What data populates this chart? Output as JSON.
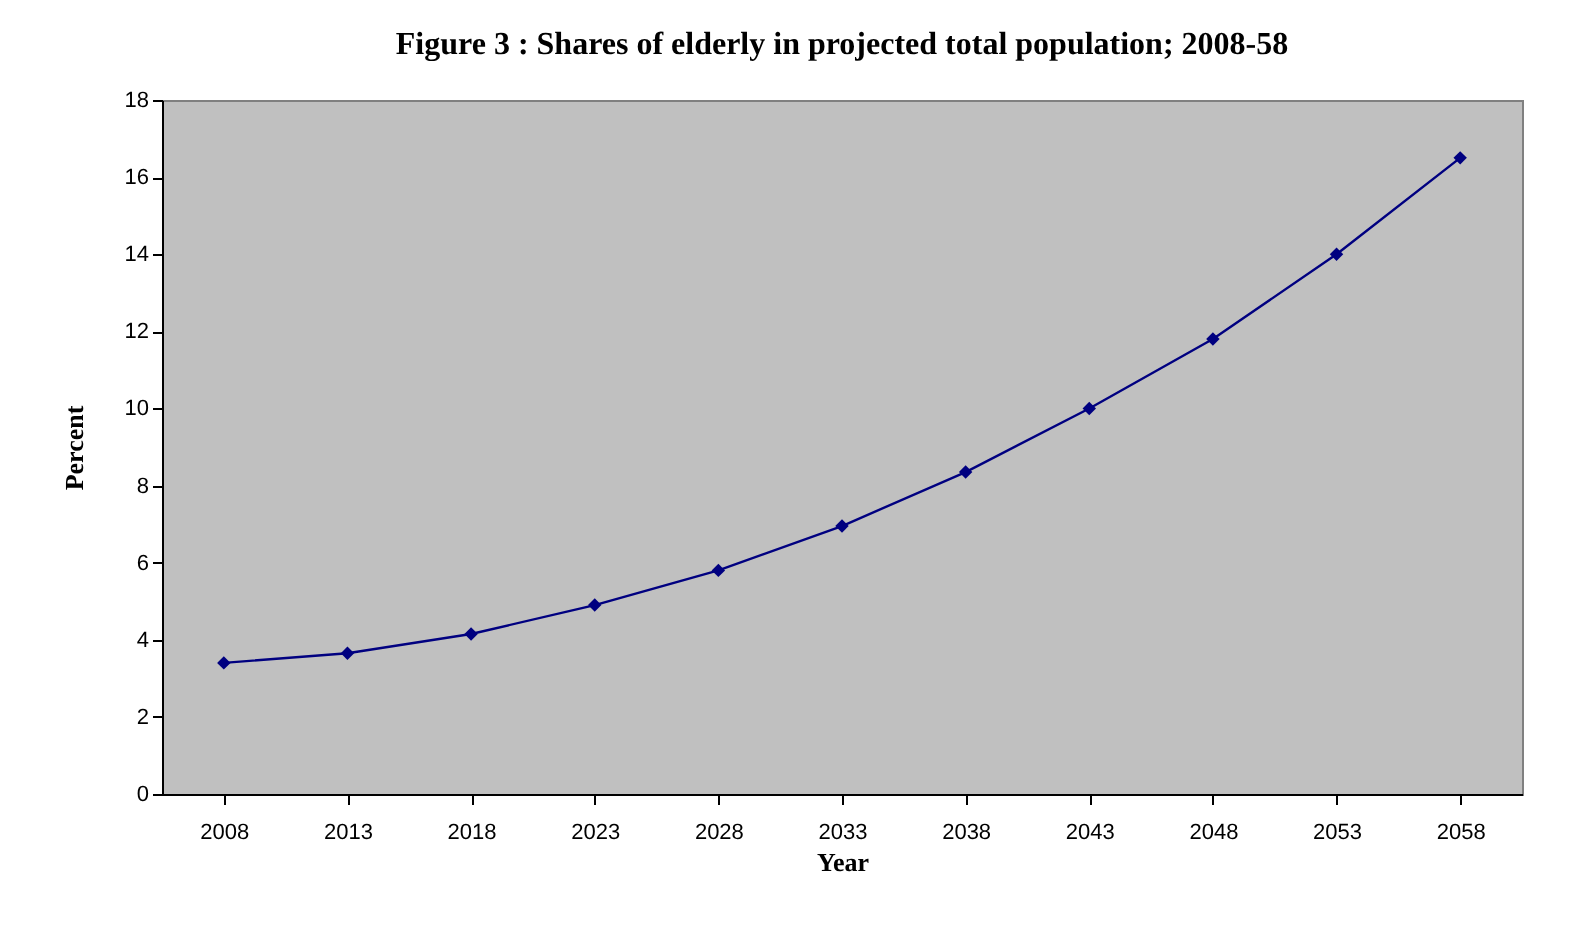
{
  "chart_data": {
    "type": "line",
    "title": "Figure 3 : Shares of elderly in projected total population; 2008-58",
    "xlabel": "Year",
    "ylabel": "Percent",
    "categories": [
      "2008",
      "2013",
      "2018",
      "2023",
      "2028",
      "2033",
      "2038",
      "2043",
      "2048",
      "2053",
      "2058"
    ],
    "series": [
      {
        "color": "#000080",
        "values": [
          3.4,
          3.65,
          4.15,
          4.9,
          5.8,
          6.95,
          8.35,
          10.0,
          11.8,
          14.0,
          16.5
        ]
      }
    ],
    "ylim": [
      0,
      18
    ],
    "yticks": [
      0,
      2,
      4,
      6,
      8,
      10,
      12,
      14,
      16,
      18
    ],
    "grid": false,
    "marker": "diamond",
    "line_style": "solid"
  }
}
